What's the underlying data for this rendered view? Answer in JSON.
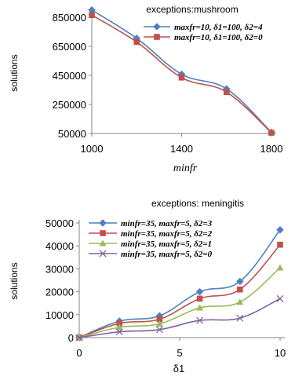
{
  "chart_data": [
    {
      "type": "line",
      "title": "exceptions:mushroom",
      "xlabel": "minfr",
      "ylabel": "solutions",
      "x": [
        1000,
        1200,
        1400,
        1600,
        1800
      ],
      "xticks": [
        "1000",
        "1400",
        "1800"
      ],
      "yticks": [
        "50000",
        "250000",
        "450000",
        "650000",
        "850000"
      ],
      "xlim": [
        1000,
        1800
      ],
      "ylim": [
        50000,
        850000
      ],
      "grid": false,
      "legend_position": "top-right",
      "series": [
        {
          "name": "maxfr=10, δ1=100, δ2=4",
          "color": "#4f81bd",
          "marker": "diamond",
          "values": [
            900000,
            705000,
            458000,
            357000,
            58000
          ]
        },
        {
          "name": "maxfr=10, δ1=100, δ2=0",
          "color": "#c0504d",
          "marker": "square",
          "values": [
            865000,
            680000,
            435000,
            335000,
            55000
          ]
        }
      ]
    },
    {
      "type": "line",
      "title": "exceptions: meningitis",
      "xlabel": "δ1",
      "ylabel": "solutions",
      "x": [
        0,
        2,
        4,
        6,
        8,
        10
      ],
      "xticks": [
        "0",
        "5",
        "10"
      ],
      "yticks": [
        "0",
        "10000",
        "20000",
        "30000",
        "40000",
        "50000"
      ],
      "xlim": [
        0,
        10
      ],
      "ylim": [
        0,
        50000
      ],
      "grid": false,
      "legend_position": "top-left",
      "series": [
        {
          "name": "minfr=35, maxfr=5, δ2=3",
          "color": "#4f81bd",
          "marker": "diamond",
          "values": [
            0,
            7200,
            9500,
            20000,
            24500,
            47000
          ]
        },
        {
          "name": "minfr=35, maxfr=5, δ2=2",
          "color": "#c0504d",
          "marker": "square",
          "values": [
            0,
            6200,
            8000,
            17000,
            21000,
            40500
          ]
        },
        {
          "name": "minfr=35, maxfr=5, δ2=1",
          "color": "#9bbb59",
          "marker": "triangle",
          "values": [
            0,
            4500,
            6000,
            13000,
            15500,
            30500
          ]
        },
        {
          "name": "minfr=35, maxfr=5, δ2=0",
          "color": "#8064a2",
          "marker": "x",
          "values": [
            0,
            2500,
            3500,
            7500,
            8500,
            17000
          ]
        }
      ]
    }
  ]
}
